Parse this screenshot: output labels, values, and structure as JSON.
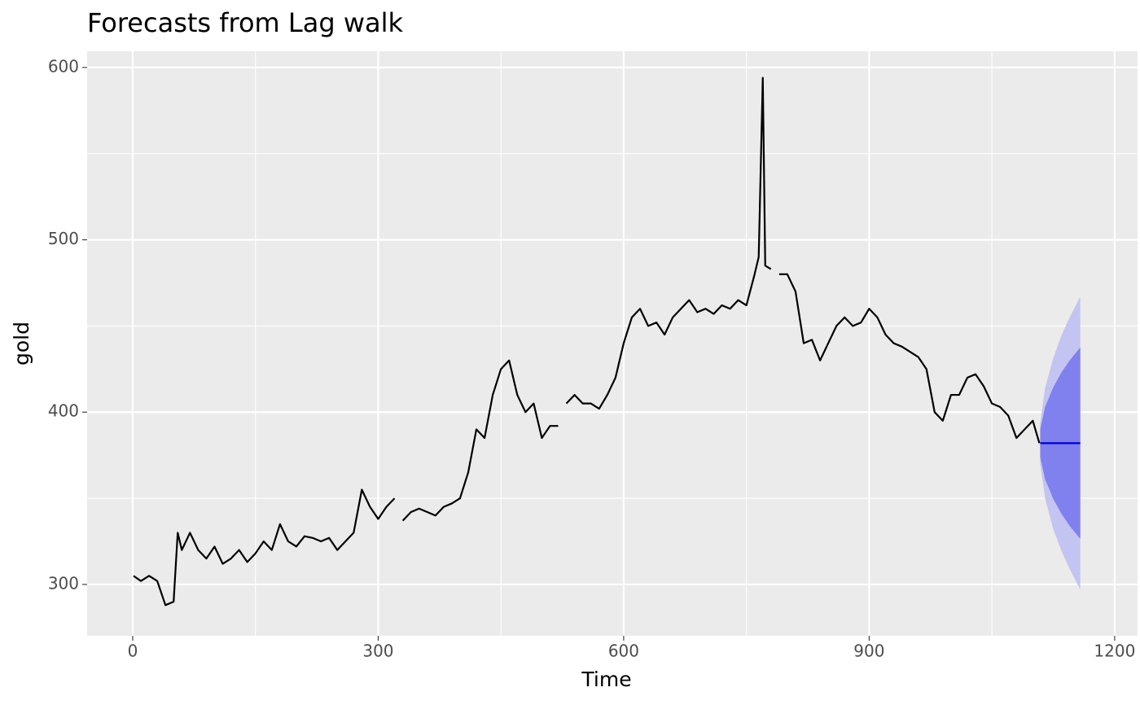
{
  "chart_data": {
    "type": "line",
    "title": "Forecasts from Lag walk",
    "x_label": "Time",
    "y_label": "gold",
    "xlim": [
      -55.7,
      1228
    ],
    "ylim": [
      270.2,
      609.4
    ],
    "xticks": [
      0,
      300,
      600,
      900,
      1200
    ],
    "yticks": [
      300,
      400,
      500,
      600
    ],
    "x_minor_ticks": [
      150,
      450,
      750,
      1050
    ],
    "y_minor_ticks": [
      350,
      450,
      550
    ],
    "grid": true,
    "series": [
      {
        "color": "#000000",
        "x": [
          1,
          10,
          20,
          30,
          40,
          50,
          55,
          60,
          70,
          80,
          90,
          100,
          110,
          120,
          130,
          140,
          150,
          160,
          170,
          180,
          190,
          200,
          210,
          220,
          230,
          240,
          250,
          260,
          270,
          280,
          290,
          300,
          310,
          320,
          325,
          330,
          340,
          350,
          360,
          370,
          380,
          390,
          400,
          410,
          420,
          430,
          440,
          450,
          460,
          470,
          480,
          490,
          500,
          510,
          520,
          525,
          530,
          540,
          550,
          560,
          570,
          580,
          590,
          600,
          610,
          620,
          630,
          640,
          650,
          660,
          670,
          680,
          690,
          700,
          710,
          720,
          730,
          740,
          750,
          760,
          765,
          770,
          773,
          780,
          785,
          790,
          800,
          810,
          820,
          830,
          840,
          850,
          860,
          870,
          880,
          890,
          900,
          910,
          920,
          930,
          940,
          950,
          960,
          970,
          980,
          990,
          1000,
          1010,
          1020,
          1030,
          1040,
          1050,
          1060,
          1070,
          1080,
          1090,
          1100,
          1108
        ],
        "values": [
          305,
          302,
          305,
          302,
          288,
          290,
          330,
          320,
          330,
          320,
          315,
          322,
          312,
          315,
          320,
          313,
          318,
          325,
          320,
          335,
          325,
          322,
          328,
          327,
          325,
          327,
          320,
          325,
          330,
          355,
          345,
          338,
          345,
          350,
          null,
          337,
          342,
          344,
          342,
          340,
          345,
          347,
          350,
          365,
          390,
          385,
          410,
          425,
          430,
          410,
          400,
          405,
          385,
          392,
          392,
          null,
          405,
          410,
          405,
          405,
          402,
          410,
          420,
          440,
          455,
          460,
          450,
          452,
          445,
          455,
          460,
          465,
          458,
          460,
          457,
          462,
          460,
          465,
          462,
          480,
          490,
          594,
          485,
          483,
          null,
          480,
          480,
          470,
          440,
          442,
          430,
          440,
          450,
          455,
          450,
          452,
          460,
          455,
          445,
          440,
          438,
          435,
          432,
          425,
          400,
          395,
          410,
          410,
          420,
          422,
          415,
          405,
          403,
          398,
          385,
          390,
          395,
          382
        ]
      }
    ],
    "forecast": {
      "x": [
        1109,
        1115,
        1125,
        1135,
        1145,
        1158
      ],
      "mean": [
        382,
        382,
        382,
        382,
        382,
        382
      ],
      "lower80": [
        374,
        361,
        349.6,
        341,
        334,
        326.4
      ],
      "upper80": [
        390,
        403,
        414.4,
        423,
        430,
        437.6
      ],
      "lower95": [
        370,
        350,
        332,
        319.5,
        309,
        297
      ],
      "upper95": [
        394,
        414,
        431.5,
        444.5,
        455,
        467
      ],
      "color95": "#c4c4f2",
      "color80": "#8080ee",
      "mean_color": "#0000cc"
    }
  }
}
